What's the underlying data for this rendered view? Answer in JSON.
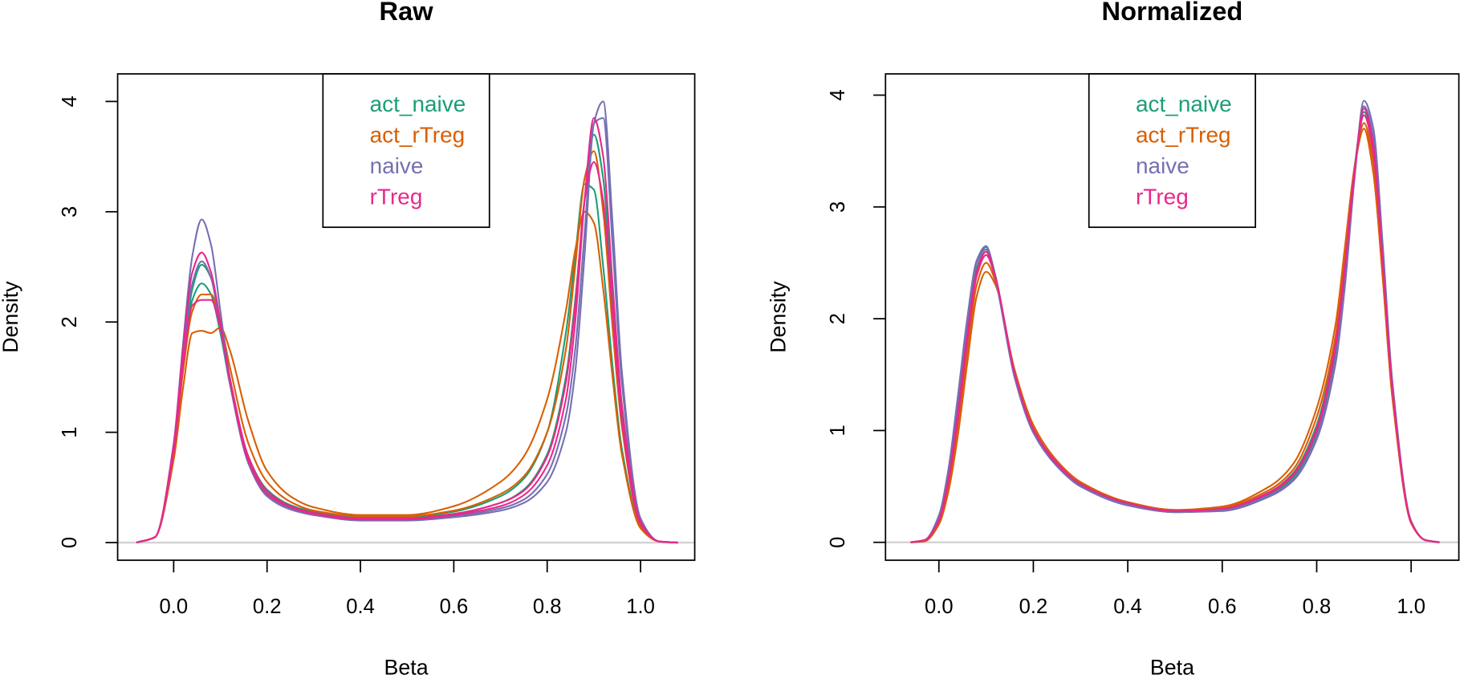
{
  "chart_data": [
    {
      "type": "line",
      "title": "Raw",
      "x_label": "Beta",
      "y_label": "Density",
      "legend": "top",
      "zero_line": true,
      "x": [
        -0.08,
        -0.04,
        0,
        0.02,
        0.04,
        0.06,
        0.08,
        0.1,
        0.12,
        0.16,
        0.2,
        0.25,
        0.3,
        0.4,
        0.5,
        0.6,
        0.7,
        0.75,
        0.8,
        0.84,
        0.86,
        0.88,
        0.9,
        0.92,
        0.94,
        0.96,
        1.0,
        1.04,
        1.08
      ],
      "xlim": [
        -0.12,
        1.116
      ],
      "ylim": [
        -0.16,
        4.25
      ],
      "xticks": [
        {
          "value": 0,
          "label": "0.0"
        },
        0.2,
        0.4,
        0.6,
        0.8,
        {
          "value": 1,
          "label": "1.0"
        }
      ],
      "yticks": [
        0,
        1,
        2,
        3,
        4
      ],
      "series": [
        {
          "name": "act_naive",
          "color": "#1B9E77",
          "curves": [
            [
              0,
              0.05,
              0.85,
              1.65,
              2.3,
              2.52,
              2.4,
              1.95,
              1.45,
              0.75,
              0.46,
              0.33,
              0.27,
              0.22,
              0.22,
              0.26,
              0.36,
              0.48,
              0.8,
              1.5,
              2.2,
              3.1,
              3.7,
              3.3,
              2.2,
              1.2,
              0.18,
              0.01,
              0
            ],
            [
              0,
              0.05,
              0.8,
              1.6,
              2.2,
              2.35,
              2.25,
              1.9,
              1.45,
              0.78,
              0.48,
              0.34,
              0.28,
              0.23,
              0.23,
              0.28,
              0.42,
              0.58,
              1.0,
              1.9,
              2.6,
              3.25,
              3.2,
              2.5,
              1.6,
              0.85,
              0.14,
              0.01,
              0
            ]
          ]
        },
        {
          "name": "act_rTreg",
          "color": "#D95F02",
          "curves": [
            [
              0,
              0.05,
              0.8,
              1.55,
              2.1,
              2.25,
              2.25,
              2.0,
              1.6,
              0.9,
              0.55,
              0.37,
              0.29,
              0.24,
              0.24,
              0.29,
              0.44,
              0.6,
              1.0,
              1.75,
              2.5,
              3.3,
              3.55,
              3.0,
              1.95,
              1.05,
              0.16,
              0.01,
              0
            ],
            [
              0,
              0.05,
              0.75,
              1.4,
              1.9,
              1.92,
              1.9,
              1.95,
              1.75,
              1.1,
              0.65,
              0.42,
              0.32,
              0.25,
              0.25,
              0.33,
              0.55,
              0.78,
              1.3,
              2.1,
              2.65,
              3.0,
              2.9,
              2.3,
              1.5,
              0.8,
              0.13,
              0.01,
              0
            ]
          ]
        },
        {
          "name": "naive",
          "color": "#7570B3",
          "curves": [
            [
              0,
              0.05,
              0.9,
              1.8,
              2.6,
              2.93,
              2.7,
              2.1,
              1.5,
              0.72,
              0.42,
              0.3,
              0.25,
              0.2,
              0.2,
              0.23,
              0.29,
              0.36,
              0.55,
              1.0,
              1.55,
              2.6,
              3.8,
              4.0,
              2.9,
              1.55,
              0.22,
              0.01,
              0
            ],
            [
              0,
              0.05,
              0.85,
              1.7,
              2.35,
              2.55,
              2.4,
              1.95,
              1.45,
              0.72,
              0.43,
              0.31,
              0.25,
              0.21,
              0.21,
              0.24,
              0.31,
              0.39,
              0.62,
              1.15,
              1.75,
              2.8,
              3.8,
              3.85,
              2.7,
              1.45,
              0.2,
              0.01,
              0
            ]
          ]
        },
        {
          "name": "rTreg",
          "color": "#E7298A",
          "curves": [
            [
              0,
              0.05,
              0.88,
              1.75,
              2.45,
              2.63,
              2.45,
              2.0,
              1.48,
              0.74,
              0.44,
              0.32,
              0.26,
              0.21,
              0.21,
              0.25,
              0.33,
              0.43,
              0.7,
              1.3,
              2.0,
              3.1,
              3.85,
              3.5,
              2.35,
              1.25,
              0.19,
              0.01,
              0
            ],
            [
              0,
              0.05,
              0.82,
              1.6,
              2.15,
              2.2,
              2.2,
              1.95,
              1.5,
              0.78,
              0.47,
              0.33,
              0.27,
              0.22,
              0.22,
              0.26,
              0.36,
              0.47,
              0.78,
              1.45,
              2.15,
              3.1,
              3.45,
              3.1,
              2.1,
              1.1,
              0.17,
              0.01,
              0
            ]
          ]
        }
      ]
    },
    {
      "type": "line",
      "title": "Normalized",
      "x_label": "Beta",
      "y_label": "Density",
      "legend": "top",
      "zero_line": true,
      "x": [
        -0.06,
        -0.03,
        0,
        0.02,
        0.04,
        0.06,
        0.08,
        0.1,
        0.12,
        0.16,
        0.2,
        0.25,
        0.3,
        0.4,
        0.5,
        0.6,
        0.7,
        0.75,
        0.8,
        0.84,
        0.86,
        0.88,
        0.9,
        0.92,
        0.94,
        0.96,
        1.0,
        1.03,
        1.06
      ],
      "xlim": [
        -0.113,
        1.101
      ],
      "ylim": [
        -0.16,
        4.19
      ],
      "xticks": [
        {
          "value": 0,
          "label": "0.0"
        },
        0.2,
        0.4,
        0.6,
        0.8,
        {
          "value": 1,
          "label": "1.0"
        }
      ],
      "yticks": [
        0,
        1,
        2,
        3,
        4
      ],
      "series": [
        {
          "name": "act_naive",
          "color": "#1B9E77",
          "curves": [
            [
              0,
              0.02,
              0.22,
              0.6,
              1.2,
              1.9,
              2.45,
              2.6,
              2.35,
              1.5,
              1.0,
              0.7,
              0.52,
              0.35,
              0.28,
              0.3,
              0.45,
              0.62,
              1.05,
              1.8,
              2.5,
              3.35,
              3.85,
              3.5,
              2.5,
              1.4,
              0.18,
              0.02,
              0
            ],
            [
              0,
              0.02,
              0.23,
              0.62,
              1.25,
              1.95,
              2.5,
              2.64,
              2.38,
              1.5,
              1.0,
              0.7,
              0.51,
              0.34,
              0.27,
              0.29,
              0.43,
              0.58,
              0.98,
              1.7,
              2.4,
              3.3,
              3.9,
              3.55,
              2.55,
              1.4,
              0.18,
              0.02,
              0
            ]
          ]
        },
        {
          "name": "act_rTreg",
          "color": "#D95F02",
          "curves": [
            [
              0,
              0.01,
              0.16,
              0.45,
              0.95,
              1.6,
              2.2,
              2.42,
              2.3,
              1.55,
              1.05,
              0.73,
              0.54,
              0.36,
              0.29,
              0.32,
              0.5,
              0.7,
              1.2,
              1.95,
              2.65,
              3.35,
              3.7,
              3.3,
              2.35,
              1.3,
              0.17,
              0.02,
              0
            ],
            [
              0,
              0.01,
              0.18,
              0.5,
              1.05,
              1.7,
              2.3,
              2.5,
              2.33,
              1.52,
              1.02,
              0.71,
              0.53,
              0.35,
              0.28,
              0.31,
              0.47,
              0.65,
              1.12,
              1.85,
              2.55,
              3.35,
              3.75,
              3.4,
              2.4,
              1.35,
              0.18,
              0.02,
              0
            ]
          ]
        },
        {
          "name": "naive",
          "color": "#7570B3",
          "curves": [
            [
              0,
              0.02,
              0.24,
              0.65,
              1.3,
              2.0,
              2.52,
              2.65,
              2.35,
              1.48,
              0.98,
              0.68,
              0.5,
              0.33,
              0.27,
              0.28,
              0.41,
              0.55,
              0.92,
              1.6,
              2.3,
              3.25,
              3.95,
              3.7,
              2.65,
              1.45,
              0.19,
              0.02,
              0
            ],
            [
              0,
              0.02,
              0.23,
              0.63,
              1.27,
              1.97,
              2.5,
              2.62,
              2.36,
              1.49,
              0.99,
              0.69,
              0.5,
              0.34,
              0.27,
              0.29,
              0.42,
              0.56,
              0.95,
              1.65,
              2.35,
              3.3,
              3.9,
              3.62,
              2.6,
              1.42,
              0.19,
              0.02,
              0
            ]
          ]
        },
        {
          "name": "rTreg",
          "color": "#E7298A",
          "curves": [
            [
              0,
              0.02,
              0.2,
              0.56,
              1.15,
              1.85,
              2.42,
              2.6,
              2.37,
              1.52,
              1.01,
              0.7,
              0.52,
              0.35,
              0.28,
              0.3,
              0.44,
              0.6,
              1.0,
              1.75,
              2.45,
              3.3,
              3.88,
              3.55,
              2.5,
              1.38,
              0.18,
              0.02,
              0
            ],
            [
              0,
              0.02,
              0.19,
              0.54,
              1.1,
              1.8,
              2.38,
              2.57,
              2.36,
              1.52,
              1.01,
              0.71,
              0.52,
              0.35,
              0.28,
              0.3,
              0.45,
              0.61,
              1.02,
              1.78,
              2.48,
              3.32,
              3.82,
              3.48,
              2.48,
              1.37,
              0.18,
              0.02,
              0
            ]
          ]
        }
      ]
    }
  ]
}
